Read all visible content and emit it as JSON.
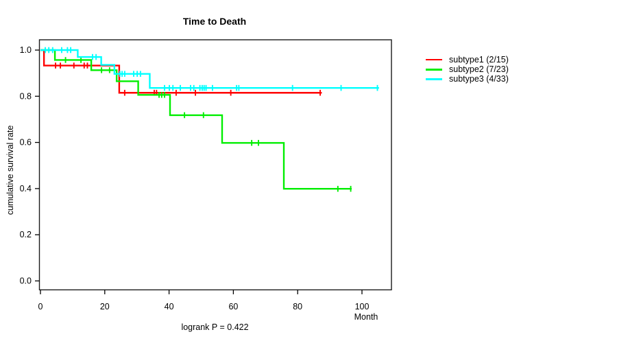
{
  "title": "Time to Death",
  "chart_data": {
    "type": "line",
    "variant": "kaplan-meier-step",
    "title": "Time to Death",
    "xlabel": "Month",
    "ylabel": "cumulative survival rate",
    "annotation": "logrank P = 0.422",
    "xlim": [
      0,
      108.5
    ],
    "ylim": [
      0.0,
      1.0
    ],
    "xticks": [
      0,
      20,
      40,
      60,
      80,
      100
    ],
    "yticks": [
      0.0,
      0.2,
      0.4,
      0.6,
      0.8,
      1.0
    ],
    "grid": false,
    "legend_position": "right-outside",
    "series": [
      {
        "name": "subtype1 (2/15)",
        "color": "#FF0000",
        "n": 15,
        "events": 2,
        "steps": [
          [
            0,
            1.0
          ],
          [
            1.1,
            0.933
          ],
          [
            24.5,
            0.815
          ]
        ],
        "end": 87.5,
        "censors": [
          [
            4.7,
            0.933
          ],
          [
            6.2,
            0.933
          ],
          [
            10.4,
            0.933
          ],
          [
            13.6,
            0.933
          ],
          [
            14.6,
            0.933
          ],
          [
            26.2,
            0.815
          ],
          [
            35.4,
            0.815
          ],
          [
            36.1,
            0.815
          ],
          [
            42.2,
            0.815
          ],
          [
            48.2,
            0.815
          ],
          [
            59.2,
            0.815
          ],
          [
            87.0,
            0.815
          ]
        ]
      },
      {
        "name": "subtype2 (7/23)",
        "color": "#00EE00",
        "n": 23,
        "events": 7,
        "steps": [
          [
            0,
            1.0
          ],
          [
            4.5,
            0.957
          ],
          [
            15.8,
            0.913
          ],
          [
            23.7,
            0.865
          ],
          [
            30.4,
            0.806
          ],
          [
            40.3,
            0.718
          ],
          [
            56.5,
            0.598
          ],
          [
            75.7,
            0.399
          ]
        ],
        "end": 96.8,
        "censors": [
          [
            7.8,
            0.957
          ],
          [
            12.6,
            0.957
          ],
          [
            19.0,
            0.913
          ],
          [
            21.5,
            0.913
          ],
          [
            36.9,
            0.806
          ],
          [
            37.7,
            0.806
          ],
          [
            38.6,
            0.806
          ],
          [
            44.8,
            0.718
          ],
          [
            50.7,
            0.718
          ],
          [
            65.7,
            0.598
          ],
          [
            67.8,
            0.598
          ],
          [
            92.5,
            0.399
          ],
          [
            96.5,
            0.399
          ]
        ]
      },
      {
        "name": "subtype3 (4/33)",
        "color": "#00FFFF",
        "n": 33,
        "events": 4,
        "steps": [
          [
            0,
            1.0
          ],
          [
            11.6,
            0.97
          ],
          [
            18.9,
            0.936
          ],
          [
            23.0,
            0.897
          ],
          [
            34.0,
            0.836
          ]
        ],
        "end": 105.3,
        "censors": [
          [
            1.5,
            1.0
          ],
          [
            2.6,
            1.0
          ],
          [
            3.8,
            1.0
          ],
          [
            6.6,
            1.0
          ],
          [
            8.4,
            1.0
          ],
          [
            9.4,
            1.0
          ],
          [
            16.2,
            0.97
          ],
          [
            17.3,
            0.97
          ],
          [
            24.7,
            0.897
          ],
          [
            25.4,
            0.897
          ],
          [
            26.2,
            0.897
          ],
          [
            29.0,
            0.897
          ],
          [
            30.1,
            0.897
          ],
          [
            31.1,
            0.897
          ],
          [
            38.6,
            0.836
          ],
          [
            40.1,
            0.836
          ],
          [
            41.2,
            0.836
          ],
          [
            43.5,
            0.836
          ],
          [
            46.7,
            0.836
          ],
          [
            47.7,
            0.836
          ],
          [
            49.6,
            0.836
          ],
          [
            50.3,
            0.836
          ],
          [
            50.9,
            0.836
          ],
          [
            51.5,
            0.836
          ],
          [
            53.5,
            0.836
          ],
          [
            61.0,
            0.836
          ],
          [
            61.7,
            0.836
          ],
          [
            78.4,
            0.836
          ],
          [
            93.5,
            0.836
          ],
          [
            104.8,
            0.836
          ]
        ]
      }
    ]
  }
}
